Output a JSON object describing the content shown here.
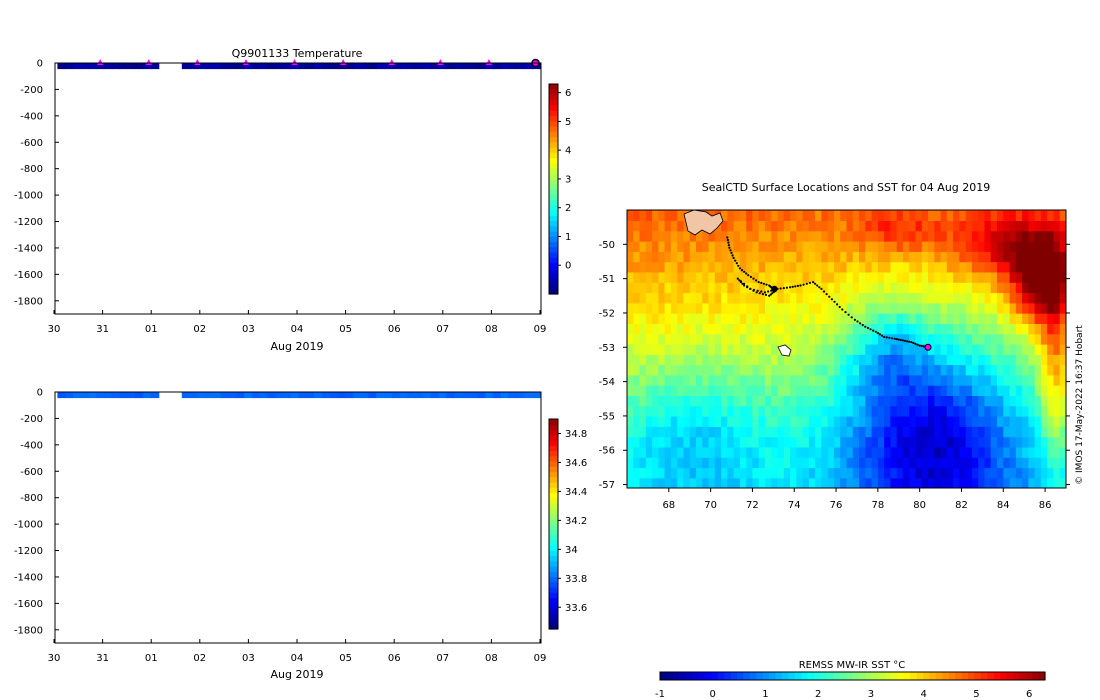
{
  "chart_data": [
    {
      "type": "heatmap",
      "title": "Q9901133  Temperature",
      "variable": "temperature",
      "xlabel": "Aug 2019",
      "x_tick_labels": [
        "30",
        "31",
        "01",
        "02",
        "03",
        "04",
        "05",
        "06",
        "07",
        "08",
        "09"
      ],
      "x_range_days": [
        0,
        10
      ],
      "ylim": [
        -1900,
        0
      ],
      "y_ticks": [
        0,
        -200,
        -400,
        -600,
        -800,
        -1000,
        -1200,
        -1400,
        -1600,
        -1800
      ],
      "colorbar": {
        "min": -1,
        "max": 6.3,
        "ticks": [
          0,
          1,
          2,
          3,
          4,
          5,
          6
        ]
      },
      "surface_markers_days": [
        1,
        2,
        3,
        4,
        5,
        6,
        7,
        8,
        9,
        10
      ]
    },
    {
      "type": "heatmap",
      "title": "",
      "variable": "salinity",
      "xlabel": "Aug 2019",
      "x_tick_labels": [
        "30",
        "31",
        "01",
        "02",
        "03",
        "04",
        "05",
        "06",
        "07",
        "08",
        "09"
      ],
      "x_range_days": [
        0,
        10
      ],
      "ylim": [
        -1900,
        0
      ],
      "y_ticks": [
        0,
        -200,
        -400,
        -600,
        -800,
        -1000,
        -1200,
        -1400,
        -1600,
        -1800
      ],
      "colorbar": {
        "min": 33.45,
        "max": 34.9,
        "ticks": [
          33.6,
          33.8,
          34,
          34.2,
          34.4,
          34.6,
          34.8
        ]
      }
    },
    {
      "type": "map",
      "title": "SealCTD Surface Locations and SST for 04 Aug 2019",
      "x_ticks": [
        68,
        70,
        72,
        74,
        76,
        78,
        80,
        82,
        84,
        86
      ],
      "y_ticks": [
        -50,
        -51,
        -52,
        -53,
        -54,
        -55,
        -56,
        -57
      ],
      "lon_range": [
        66,
        87
      ],
      "lat_range": [
        -57.1,
        -49.0
      ],
      "latest_position": {
        "lon": 80.4,
        "lat": -53.0
      },
      "track": [
        [
          70.8,
          -49.8
        ],
        [
          70.9,
          -50.1
        ],
        [
          71.1,
          -50.4
        ],
        [
          71.4,
          -50.7
        ],
        [
          71.8,
          -50.9
        ],
        [
          72.3,
          -51.1
        ],
        [
          72.8,
          -51.2
        ],
        [
          73.0,
          -51.3
        ],
        [
          73.1,
          -51.35
        ],
        [
          72.8,
          -51.5
        ],
        [
          72.2,
          -51.4
        ],
        [
          71.6,
          -51.2
        ],
        [
          71.3,
          -51.0
        ],
        [
          71.9,
          -51.3
        ],
        [
          72.6,
          -51.4
        ],
        [
          73.2,
          -51.3
        ],
        [
          73.8,
          -51.25
        ],
        [
          74.3,
          -51.2
        ],
        [
          74.9,
          -51.1
        ],
        [
          75.3,
          -51.3
        ],
        [
          75.8,
          -51.6
        ],
        [
          76.3,
          -51.9
        ],
        [
          76.9,
          -52.2
        ],
        [
          77.4,
          -52.4
        ],
        [
          77.9,
          -52.55
        ],
        [
          78.3,
          -52.7
        ],
        [
          78.8,
          -52.75
        ],
        [
          79.2,
          -52.8
        ],
        [
          79.6,
          -52.85
        ],
        [
          80.0,
          -52.95
        ],
        [
          80.4,
          -53.0
        ]
      ],
      "colorbar": {
        "label": "REMSS MW-IR SST °C",
        "min": -1,
        "max": 6.3,
        "ticks": [
          -1,
          0,
          1,
          2,
          3,
          4,
          5,
          6
        ]
      },
      "credit": "© IMOS 17-May-2022 16:37 Hobart"
    }
  ]
}
